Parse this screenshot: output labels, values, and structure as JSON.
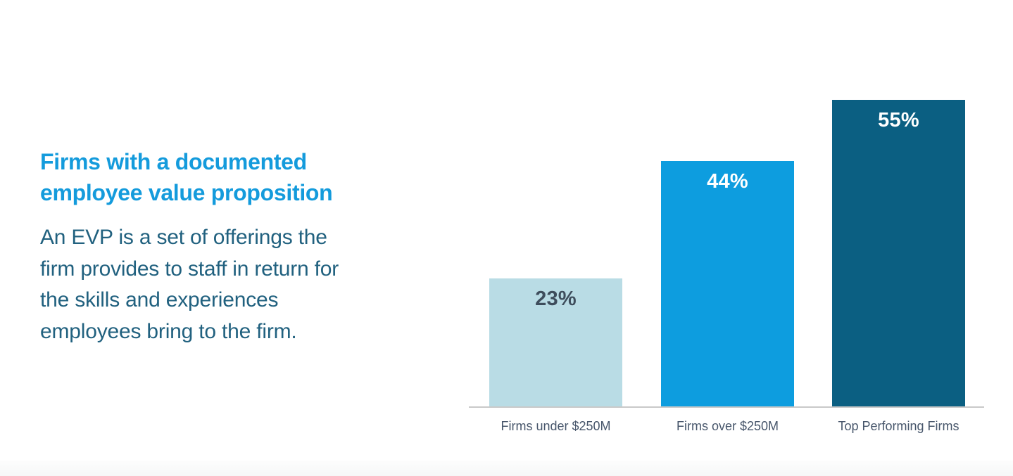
{
  "page": {
    "background": "#ffffff"
  },
  "text_panel": {
    "heading": "Firms with a documented employee value proposition",
    "body": "An EVP is a set of offerings the firm provides to staff in return for the skills and experiences employees bring to the firm.",
    "heading_color": "#149bdc",
    "body_color": "#21617f"
  },
  "chart_data": {
    "type": "bar",
    "title": "Firms with a documented employee value proposition",
    "categories": [
      "Firms under $250M",
      "Firms over $250M",
      "Top Performing Firms"
    ],
    "values": [
      23,
      44,
      55
    ],
    "value_labels": [
      "23%",
      "44%",
      "55%"
    ],
    "xlabel": "",
    "ylabel": "",
    "ylim": [
      0,
      60
    ],
    "grid": false,
    "legend": false,
    "bar_colors": [
      "#b9dce5",
      "#0d9ddf",
      "#0b5f82"
    ],
    "value_label_colors": [
      "#3e4d5c",
      "#ffffff",
      "#ffffff"
    ],
    "category_label_color": "#47566b",
    "axis_line_color": "#c9c9c9"
  }
}
